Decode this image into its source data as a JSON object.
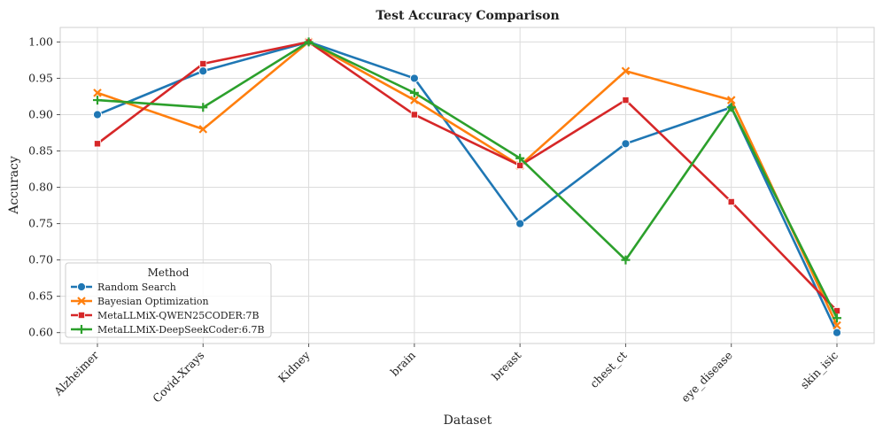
{
  "chart_data": {
    "type": "line",
    "title": "Test Accuracy Comparison",
    "xlabel": "Dataset",
    "ylabel": "Accuracy",
    "categories": [
      "Alzheimer",
      "Covid-Xrays",
      "Kidney",
      "brain",
      "breast",
      "chest_ct",
      "eye_disease",
      "skin_isic"
    ],
    "ylim": [
      0.585,
      1.02
    ],
    "yticks": [
      0.6,
      0.65,
      0.7,
      0.75,
      0.8,
      0.85,
      0.9,
      0.95,
      1.0
    ],
    "ytick_labels": [
      "0.60",
      "0.65",
      "0.70",
      "0.75",
      "0.80",
      "0.85",
      "0.90",
      "0.95",
      "1.00"
    ],
    "grid": true,
    "legend": {
      "title": "Method",
      "placement": "lower-left"
    },
    "series": [
      {
        "name": "Random Search",
        "color": "#1f77b4",
        "marker": "circle",
        "values": [
          0.9,
          0.96,
          1.0,
          0.95,
          0.75,
          0.86,
          0.91,
          0.6
        ]
      },
      {
        "name": "Bayesian Optimization",
        "color": "#ff7f0e",
        "marker": "x",
        "values": [
          0.93,
          0.88,
          1.0,
          0.92,
          0.83,
          0.96,
          0.92,
          0.61
        ]
      },
      {
        "name": "MetaLLMiX-QWEN25CODER:7B",
        "color": "#d62728",
        "marker": "square",
        "values": [
          0.86,
          0.97,
          1.0,
          0.9,
          0.83,
          0.92,
          0.78,
          0.63
        ]
      },
      {
        "name": "MetaLLMiX-DeepSeekCoder:6.7B",
        "color": "#2ca02c",
        "marker": "plus",
        "values": [
          0.92,
          0.91,
          1.0,
          0.93,
          0.84,
          0.7,
          0.91,
          0.62
        ]
      }
    ]
  }
}
